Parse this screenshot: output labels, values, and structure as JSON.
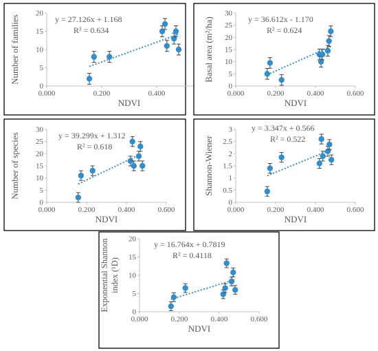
{
  "chart_data": [
    {
      "type": "scatter",
      "xlabel": "NDVI",
      "ylabel": "Number of families",
      "equation": "y = 27.126x + 1.168",
      "r2": "R² = 0.634",
      "xlim": [
        0,
        0.6
      ],
      "ylim": [
        0,
        20
      ],
      "xticks": [
        "0.000",
        "0.200",
        "0.400",
        "0.600"
      ],
      "yticks": [
        "0",
        "5",
        "10",
        "15",
        "20"
      ],
      "x": [
        0.155,
        0.172,
        0.228,
        0.42,
        0.43,
        0.437,
        0.463,
        0.47,
        0.48
      ],
      "y": [
        2.0,
        8.0,
        8.0,
        15.0,
        17.0,
        11.0,
        13.0,
        15.0,
        10.0
      ],
      "err": [
        1.5,
        1.5,
        1.5,
        1.5,
        1.5,
        1.5,
        1.5,
        1.5,
        1.5
      ],
      "trendline": {
        "slope": 27.126,
        "intercept": 1.168
      },
      "grid": false,
      "legend": "none"
    },
    {
      "type": "scatter",
      "xlabel": "NDVI",
      "ylabel": "Basal area (m²/ha)",
      "equation": "y = 36.612x - 1.170",
      "r2": "R² = 0.624",
      "xlim": [
        0,
        0.6
      ],
      "ylim": [
        0,
        30
      ],
      "xticks": [
        "0.000",
        "0.200",
        "0.400",
        "0.600"
      ],
      "yticks": [
        "0",
        "5",
        "10",
        "15",
        "20",
        "25",
        "30"
      ],
      "x": [
        0.158,
        0.172,
        0.23,
        0.42,
        0.428,
        0.435,
        0.462,
        0.468,
        0.477
      ],
      "y": [
        5.0,
        9.5,
        2.5,
        13.0,
        10.0,
        13.0,
        14.5,
        18.5,
        22.5
      ],
      "err": [
        2.2,
        2.2,
        2.2,
        2.2,
        2.2,
        2.2,
        2.2,
        2.2,
        2.2
      ],
      "trendline": {
        "slope": 36.612,
        "intercept": -1.17
      },
      "grid": false,
      "legend": "none"
    },
    {
      "type": "scatter",
      "xlabel": "NDVI",
      "ylabel": "Number of species",
      "equation": "y = 39.299x + 1.312",
      "r2": "R² = 0.618",
      "xlim": [
        0,
        0.6
      ],
      "ylim": [
        0,
        30
      ],
      "xticks": [
        "0.000",
        "0.200",
        "0.400",
        "0.600"
      ],
      "yticks": [
        "0",
        "5",
        "10",
        "15",
        "20",
        "25",
        "30"
      ],
      "x": [
        0.158,
        0.172,
        0.23,
        0.42,
        0.43,
        0.437,
        0.462,
        0.47,
        0.48
      ],
      "y": [
        2.0,
        11.0,
        13.0,
        17.0,
        25.0,
        15.0,
        19.0,
        23.0,
        15.0
      ],
      "err": [
        2.0,
        2.0,
        2.0,
        2.0,
        2.0,
        2.0,
        2.0,
        2.0,
        2.0
      ],
      "trendline": {
        "slope": 39.299,
        "intercept": 1.312
      },
      "grid": false,
      "legend": "none"
    },
    {
      "type": "scatter",
      "xlabel": "NDVI",
      "ylabel": "Shannon-Wiener",
      "equation": "y = 3.347x + 0.566",
      "r2": "R² = 0.522",
      "xlim": [
        0,
        0.6
      ],
      "ylim": [
        0,
        3
      ],
      "xticks": [
        "0.000",
        "0.200",
        "0.400",
        "0.600"
      ],
      "yticks": [
        "0",
        "0.5",
        "1",
        "1.5",
        "2",
        "2.5",
        "3"
      ],
      "x": [
        0.158,
        0.172,
        0.23,
        0.42,
        0.43,
        0.437,
        0.462,
        0.47,
        0.48
      ],
      "y": [
        0.45,
        1.4,
        1.85,
        1.6,
        2.6,
        1.9,
        2.1,
        2.38,
        1.75
      ],
      "err": [
        0.2,
        0.2,
        0.2,
        0.2,
        0.2,
        0.2,
        0.2,
        0.2,
        0.2
      ],
      "trendline": {
        "slope": 3.347,
        "intercept": 0.566
      },
      "grid": false,
      "legend": "none"
    },
    {
      "type": "scatter",
      "xlabel": "NDVI",
      "ylabel_lines": [
        "Exponential Shannon",
        "index (¹D)"
      ],
      "equation": "y = 16.764x + 0.7819",
      "r2": "R² = 0.4118",
      "xlim": [
        0,
        0.6
      ],
      "ylim": [
        0,
        20
      ],
      "xticks": [
        "0.000",
        "0.200",
        "0.400",
        "0.600"
      ],
      "yticks": [
        "0",
        "5",
        "10",
        "15",
        "20"
      ],
      "x": [
        0.158,
        0.172,
        0.23,
        0.42,
        0.43,
        0.437,
        0.462,
        0.47,
        0.48
      ],
      "y": [
        1.5,
        4.0,
        6.5,
        4.8,
        6.5,
        13.3,
        8.3,
        10.8,
        6.0
      ],
      "err": [
        1.2,
        1.2,
        1.2,
        1.2,
        1.2,
        1.2,
        1.2,
        1.2,
        1.2
      ],
      "trendline": {
        "slope": 16.764,
        "intercept": 0.7819
      },
      "grid": false,
      "legend": "none"
    }
  ],
  "style": {
    "marker_color": "#2e8fd0",
    "trend_color": "#2e8fd0",
    "axis_color": "#bfbfbf",
    "text_color": "#595959",
    "frame_color": "#000000",
    "errorbar_color": "#404040"
  }
}
